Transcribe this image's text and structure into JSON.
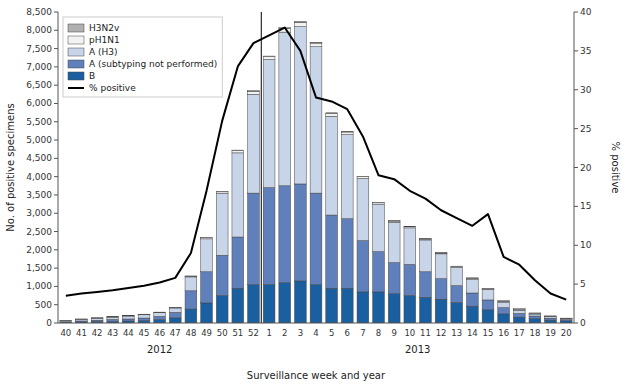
{
  "chart_data": {
    "type": "bar",
    "stacked": true,
    "categories": [
      "40",
      "41",
      "42",
      "43",
      "44",
      "45",
      "46",
      "47",
      "48",
      "49",
      "50",
      "51",
      "52",
      "1",
      "2",
      "3",
      "4",
      "5",
      "6",
      "7",
      "8",
      "9",
      "10",
      "11",
      "12",
      "13",
      "14",
      "15",
      "16",
      "17",
      "18",
      "19",
      "20"
    ],
    "series": [
      {
        "name": "H3N2v",
        "type": "bar",
        "color": "#b0b0b0",
        "values": [
          5,
          5,
          5,
          5,
          5,
          5,
          5,
          5,
          5,
          10,
          10,
          15,
          20,
          15,
          20,
          20,
          20,
          15,
          15,
          10,
          10,
          10,
          10,
          10,
          15,
          15,
          20,
          25,
          30,
          30,
          20,
          15,
          10
        ]
      },
      {
        "name": "pH1N1",
        "type": "bar",
        "color": "#f2f2f2",
        "values": [
          5,
          5,
          8,
          8,
          8,
          10,
          12,
          15,
          20,
          30,
          40,
          60,
          80,
          80,
          100,
          120,
          100,
          80,
          70,
          50,
          40,
          35,
          30,
          25,
          20,
          18,
          15,
          15,
          12,
          10,
          10,
          10,
          8
        ]
      },
      {
        "name": "A (H3)",
        "type": "bar",
        "color": "#c8d4e8",
        "values": [
          30,
          45,
          55,
          65,
          80,
          90,
          100,
          120,
          380,
          900,
          1700,
          2300,
          2700,
          3500,
          4200,
          4300,
          4000,
          2700,
          2300,
          1700,
          1300,
          1100,
          1000,
          870,
          680,
          500,
          380,
          280,
          150,
          90,
          55,
          40,
          25
        ]
      },
      {
        "name": "A (subtyping not performed)",
        "type": "bar",
        "color": "#6080bb",
        "values": [
          20,
          30,
          40,
          50,
          55,
          70,
          90,
          150,
          500,
          850,
          1100,
          1400,
          2500,
          2650,
          2650,
          2650,
          2500,
          2000,
          1900,
          1400,
          1100,
          850,
          850,
          700,
          560,
          460,
          360,
          270,
          170,
          100,
          70,
          50,
          30
        ]
      },
      {
        "name": "B",
        "type": "bar",
        "color": "#1a5fa0",
        "values": [
          15,
          25,
          35,
          45,
          55,
          65,
          90,
          140,
          380,
          550,
          750,
          950,
          1050,
          1050,
          1100,
          1150,
          1050,
          950,
          950,
          850,
          850,
          800,
          750,
          700,
          650,
          560,
          460,
          360,
          250,
          160,
          120,
          80,
          60
        ]
      },
      {
        "name": "% positive",
        "type": "line",
        "axis": "y2",
        "color": "black",
        "values": [
          3.5,
          3.8,
          4.0,
          4.2,
          4.5,
          4.8,
          5.2,
          5.8,
          9,
          17,
          26,
          33,
          36,
          37,
          38,
          35,
          29,
          28.5,
          27.5,
          24,
          19,
          18.5,
          17,
          16,
          14.5,
          13.5,
          12.5,
          14,
          8.5,
          7.5,
          5.5,
          3.8,
          3.0
        ]
      }
    ],
    "y_label": "No. of positive specimens",
    "y2_label": "% positive",
    "x_label": "Surveillance week and year",
    "annotations": [
      {
        "text": "2012",
        "from": "40",
        "to": "52"
      },
      {
        "text": "2013",
        "from": "1",
        "to": "20"
      }
    ],
    "ylim": [
      0,
      8500
    ],
    "yticks": [
      0,
      500,
      {
        "value": 1000,
        "label": "1,000"
      },
      {
        "value": 1500,
        "label": "1,500"
      },
      {
        "value": 2000,
        "label": "2,000"
      },
      {
        "value": 2500,
        "label": "2,500"
      },
      {
        "value": 3000,
        "label": "3,000"
      },
      {
        "value": 3500,
        "label": "3,500"
      },
      {
        "value": 4000,
        "label": "4,000"
      },
      {
        "value": 4500,
        "label": "4,500"
      },
      {
        "value": 5000,
        "label": "5,000"
      },
      {
        "value": 5500,
        "label": "5,500"
      },
      {
        "value": 6000,
        "label": "6,000"
      },
      {
        "value": 6500,
        "label": "6,500"
      },
      {
        "value": 7000,
        "label": "7,000"
      },
      {
        "value": 7500,
        "label": "7,500"
      },
      {
        "value": 8000,
        "label": "8,000"
      },
      {
        "value": 8500,
        "label": "8,500"
      }
    ],
    "y2lim": [
      0,
      40
    ],
    "y2ticks": [
      0,
      5,
      10,
      15,
      20,
      25,
      30,
      35,
      40
    ],
    "grid": false,
    "legend": "upper left"
  }
}
